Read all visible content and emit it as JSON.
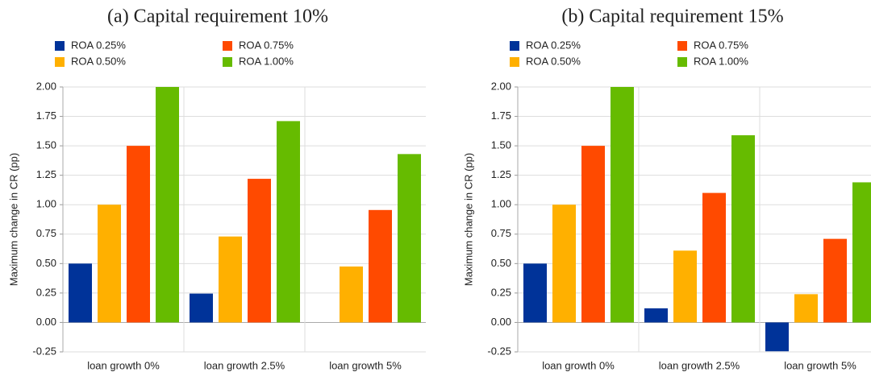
{
  "chart_data": [
    {
      "type": "bar",
      "title": "(a) Capital requirement 10%",
      "y_label": "Maximum change in CR (pp)",
      "categories": [
        "loan growth 0%",
        "loan growth 2.5%",
        "loan growth 5%"
      ],
      "series": [
        {
          "name": "ROA 0.25%",
          "color": "#003399",
          "values": [
            0.5,
            0.245,
            0
          ]
        },
        {
          "name": "ROA 0.50%",
          "color": "#ffb000",
          "values": [
            1.0,
            0.73,
            0.475
          ]
        },
        {
          "name": "ROA 0.75%",
          "color": "#ff4a00",
          "values": [
            1.5,
            1.22,
            0.955
          ]
        },
        {
          "name": "ROA 1.00%",
          "color": "#66bb00",
          "values": [
            2.0,
            1.71,
            1.43
          ]
        }
      ],
      "ylim": [
        -0.25,
        2.0
      ],
      "yticks": [
        {
          "value": -0.25,
          "label": "-0.25"
        },
        {
          "value": 0,
          "label": "0.00"
        },
        {
          "value": 0.25,
          "label": "0.25"
        },
        {
          "value": 0.5,
          "label": "0.50"
        },
        {
          "value": 0.75,
          "label": "0.75"
        },
        {
          "value": 1,
          "label": "1.00"
        },
        {
          "value": 1.25,
          "label": "1.25"
        },
        {
          "value": 1.5,
          "label": "1.50"
        },
        {
          "value": 1.75,
          "label": "1.75"
        },
        {
          "value": 2,
          "label": "2.00"
        }
      ],
      "grid": true
    },
    {
      "type": "bar",
      "title": "(b) Capital requirement 15%",
      "y_label": "Maximum change in CR (pp)",
      "categories": [
        "loan growth 0%",
        "loan growth 2.5%",
        "loan growth 5%"
      ],
      "series": [
        {
          "name": "ROA 0.25%",
          "color": "#003399",
          "values": [
            0.5,
            0.12,
            -0.245
          ]
        },
        {
          "name": "ROA 0.50%",
          "color": "#ffb000",
          "values": [
            1.0,
            0.61,
            0.24
          ]
        },
        {
          "name": "ROA 0.75%",
          "color": "#ff4a00",
          "values": [
            1.5,
            1.1,
            0.71
          ]
        },
        {
          "name": "ROA 1.00%",
          "color": "#66bb00",
          "values": [
            2.0,
            1.59,
            1.19
          ]
        }
      ],
      "ylim": [
        -0.25,
        2.0
      ],
      "yticks": [
        {
          "value": -0.25,
          "label": "-0.25"
        },
        {
          "value": 0,
          "label": "0.00"
        },
        {
          "value": 0.25,
          "label": "0.25"
        },
        {
          "value": 0.5,
          "label": "0.50"
        },
        {
          "value": 0.75,
          "label": "0.75"
        },
        {
          "value": 1,
          "label": "1.00"
        },
        {
          "value": 1.25,
          "label": "1.25"
        },
        {
          "value": 1.5,
          "label": "1.50"
        },
        {
          "value": 1.75,
          "label": "1.75"
        },
        {
          "value": 2,
          "label": "2.00"
        }
      ],
      "grid": true
    }
  ]
}
